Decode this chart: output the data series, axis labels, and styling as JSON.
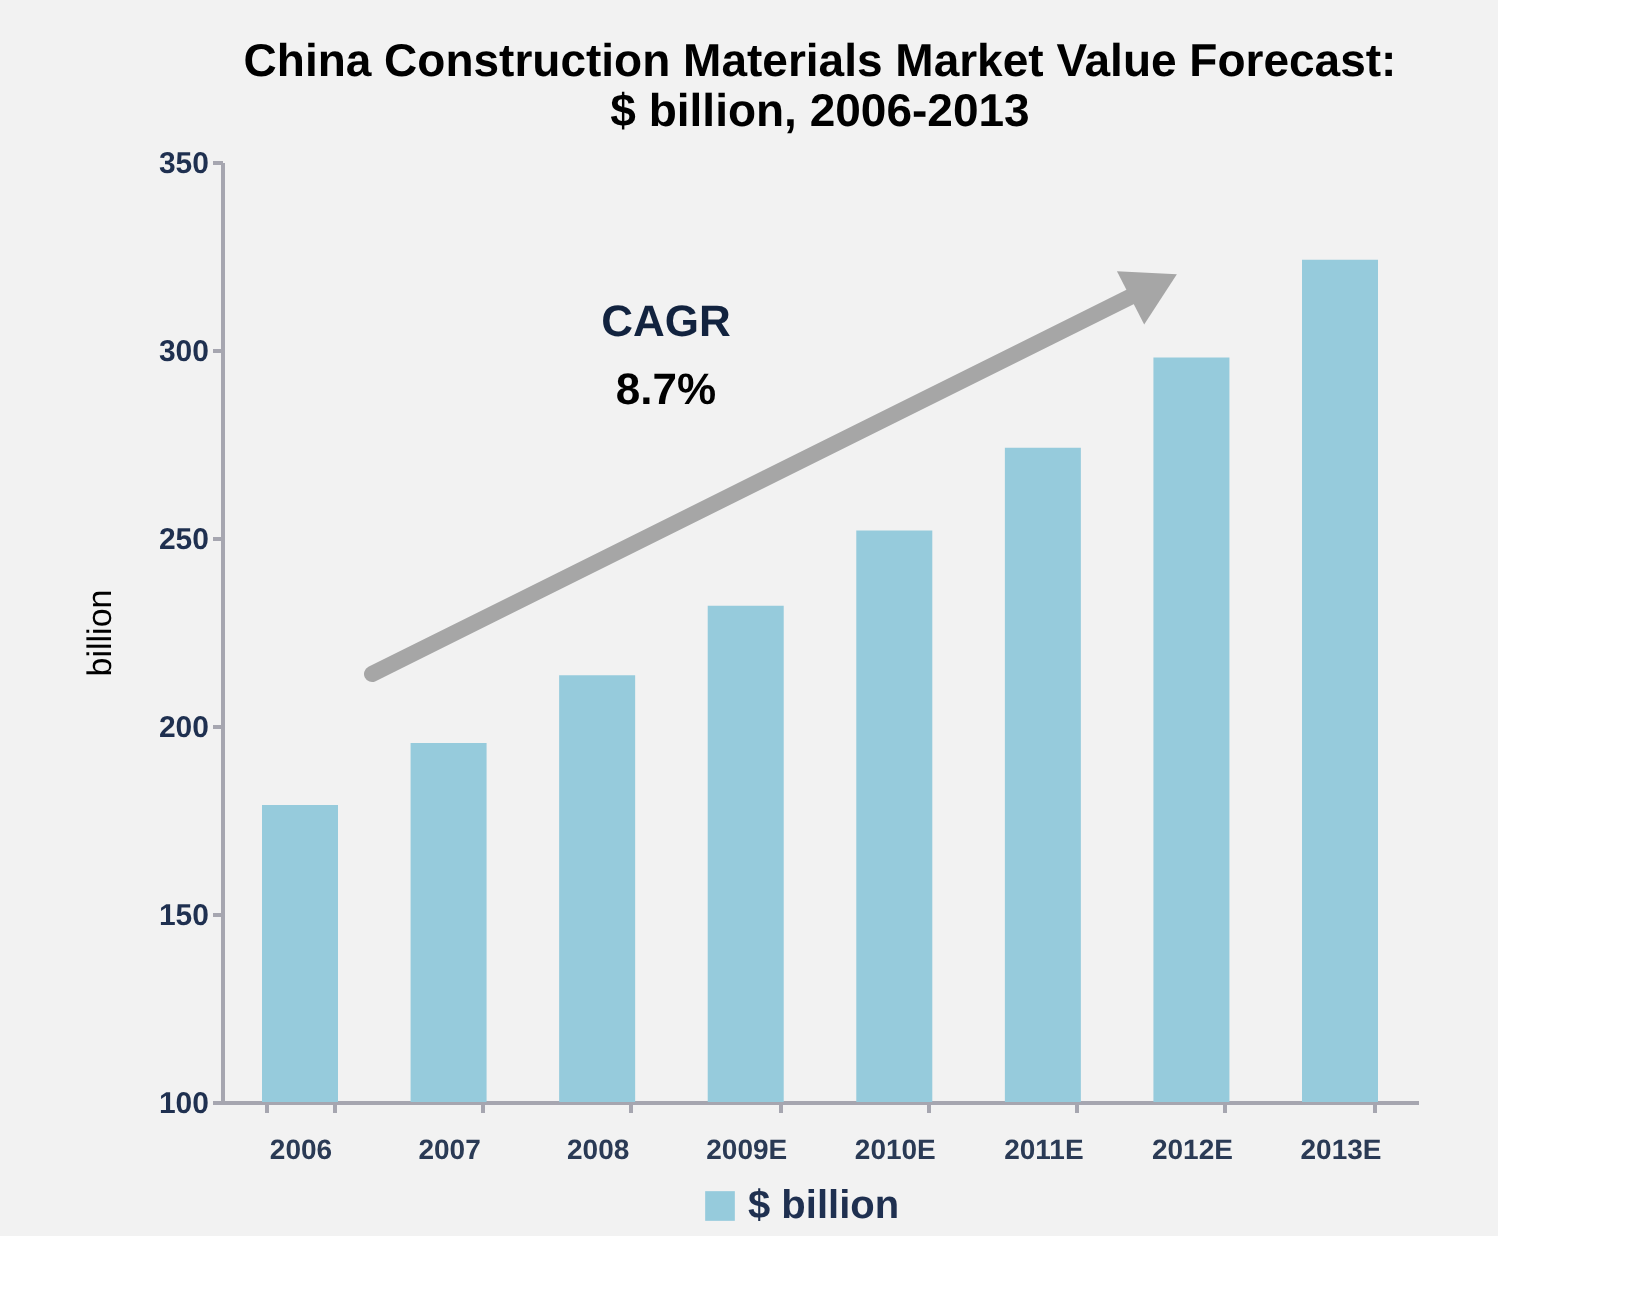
{
  "chart_data": {
    "type": "bar",
    "title": [
      "China Construction Materials Market Value Forecast:",
      "$ billion, 2006-2013"
    ],
    "categories": [
      "2006",
      "2007",
      "2008",
      "2009E",
      "2010E",
      "2011E",
      "2012E",
      "2013E"
    ],
    "series": [
      {
        "name": "$ billion",
        "color": "#96cbdc",
        "values": [
          179,
          195.5,
          213.5,
          232,
          252,
          274,
          298,
          324
        ]
      }
    ],
    "ylabel": "billion",
    "ylim": [
      100,
      350
    ],
    "yticks": [
      100,
      150,
      200,
      250,
      300,
      350
    ],
    "grid": false,
    "legend": "bottom",
    "annotations": [
      "CAGR",
      "8.7%"
    ]
  }
}
